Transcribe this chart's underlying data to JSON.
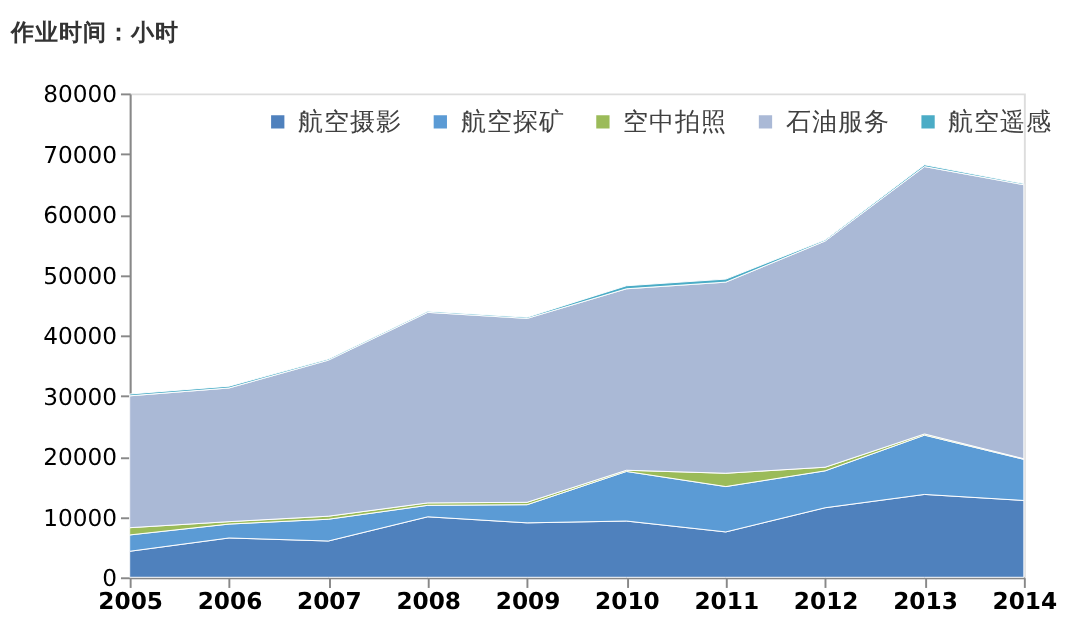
{
  "chart_data": {
    "type": "area",
    "stacked": true,
    "ylabel": "作业时间：小时",
    "x": [
      2005,
      2006,
      2007,
      2008,
      2009,
      2010,
      2011,
      2012,
      2013,
      2014
    ],
    "series": [
      {
        "name": "航空摄影",
        "color": "#4f81bd",
        "values": [
          4300,
          6500,
          6000,
          10000,
          9000,
          9300,
          7500,
          11500,
          13700,
          12700
        ]
      },
      {
        "name": "航空探矿",
        "color": "#5b9bd5",
        "values": [
          2700,
          2300,
          3600,
          1900,
          3000,
          8200,
          7500,
          6100,
          9800,
          6800
        ]
      },
      {
        "name": "空中拍照",
        "color": "#9bbb59",
        "values": [
          1200,
          400,
          500,
          400,
          400,
          200,
          2200,
          600,
          200,
          100
        ]
      },
      {
        "name": "石油服务",
        "color": "#aab9d6",
        "values": [
          21800,
          22100,
          25800,
          31500,
          30400,
          30000,
          31600,
          37400,
          44200,
          45300
        ]
      },
      {
        "name": "航空遥感",
        "color": "#4bacc6",
        "values": [
          300,
          300,
          200,
          200,
          200,
          500,
          500,
          200,
          300,
          200
        ]
      }
    ],
    "xlim": [
      2005,
      2014
    ],
    "xticks": [
      2005,
      2006,
      2007,
      2008,
      2009,
      2010,
      2011,
      2012,
      2013,
      2014
    ],
    "ylim": [
      0,
      80000
    ],
    "yticks": [
      0,
      10000,
      20000,
      30000,
      40000,
      50000,
      60000,
      70000,
      80000
    ],
    "grid": false,
    "legend": "top"
  }
}
